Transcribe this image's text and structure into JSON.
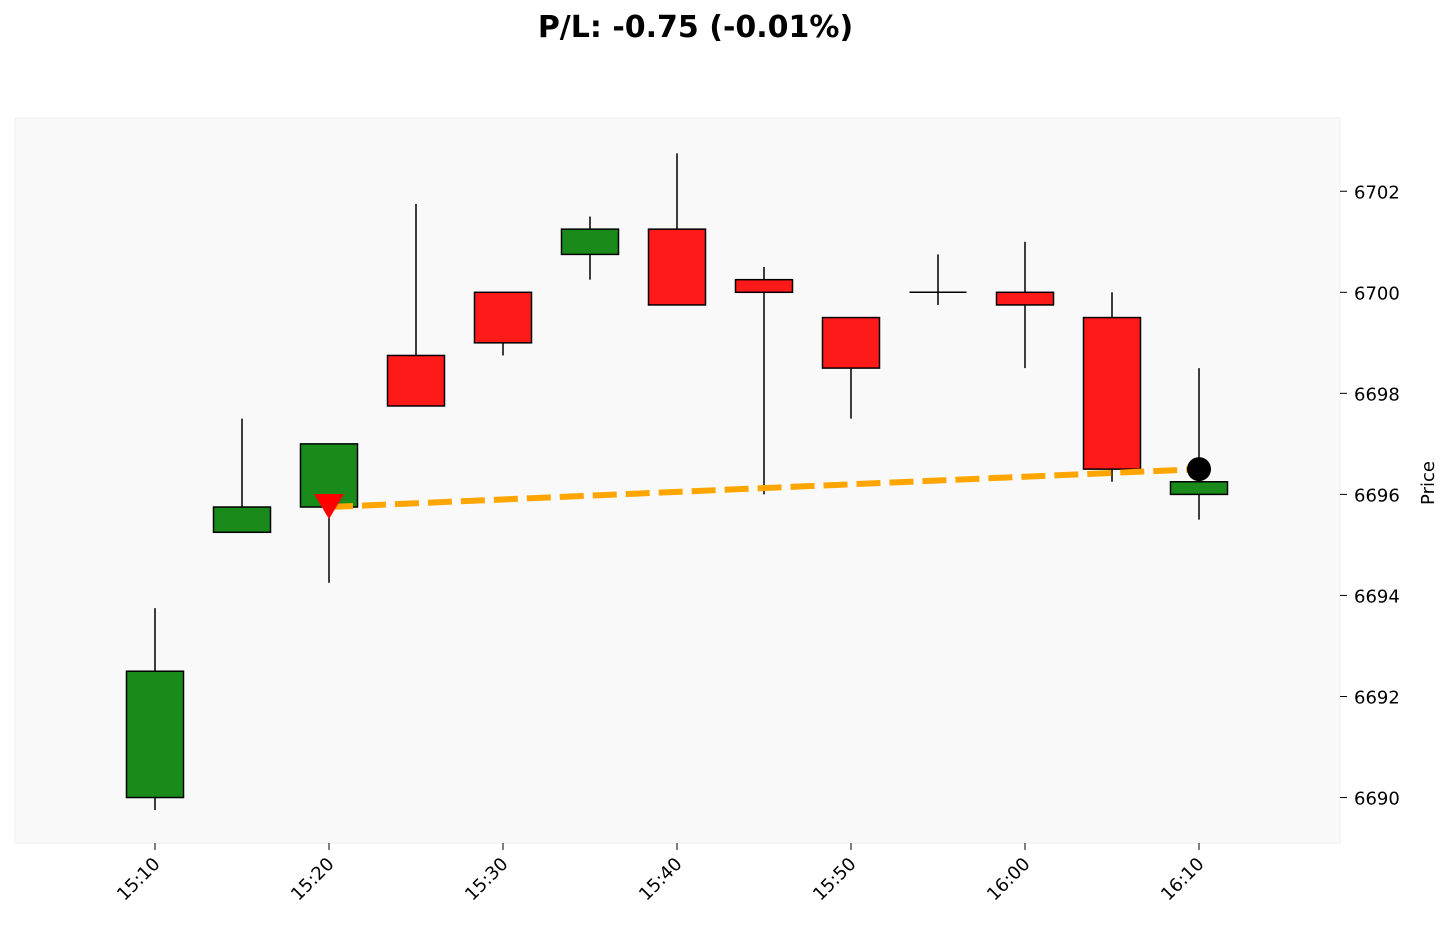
{
  "chart_data": {
    "type": "candlestick",
    "title": "P/L: -0.75 (-0.01%)",
    "ylabel": "Price",
    "xlabel": "",
    "ylim": [
      6689.1,
      6703.45
    ],
    "y_ticks": [
      6690,
      6692,
      6694,
      6696,
      6698,
      6700,
      6702
    ],
    "x_ticks": [
      "15:10",
      "15:20",
      "15:30",
      "15:40",
      "15:50",
      "16:00",
      "16:10"
    ],
    "grid": false,
    "candles": [
      {
        "time": "15:10",
        "open": 6690.0,
        "high": 6693.75,
        "low": 6689.75,
        "close": 6692.5
      },
      {
        "time": "15:15",
        "open": 6695.25,
        "high": 6697.5,
        "low": 6695.25,
        "close": 6695.75
      },
      {
        "time": "15:20",
        "open": 6695.75,
        "high": 6697.0,
        "low": 6694.25,
        "close": 6697.0
      },
      {
        "time": "15:25",
        "open": 6698.75,
        "high": 6701.75,
        "low": 6697.75,
        "close": 6697.75
      },
      {
        "time": "15:30",
        "open": 6700.0,
        "high": 6700.0,
        "low": 6698.75,
        "close": 6699.0
      },
      {
        "time": "15:35",
        "open": 6700.75,
        "high": 6701.5,
        "low": 6700.25,
        "close": 6701.25
      },
      {
        "time": "15:40",
        "open": 6701.25,
        "high": 6702.75,
        "low": 6699.75,
        "close": 6699.75
      },
      {
        "time": "15:45",
        "open": 6700.25,
        "high": 6700.5,
        "low": 6696.0,
        "close": 6700.0
      },
      {
        "time": "15:50",
        "open": 6699.5,
        "high": 6699.5,
        "low": 6697.5,
        "close": 6698.5
      },
      {
        "time": "15:55",
        "open": 6700.0,
        "high": 6700.75,
        "low": 6699.75,
        "close": 6700.0
      },
      {
        "time": "16:00",
        "open": 6700.0,
        "high": 6701.0,
        "low": 6698.5,
        "close": 6699.75
      },
      {
        "time": "16:05",
        "open": 6699.5,
        "high": 6700.0,
        "low": 6696.25,
        "close": 6696.5
      },
      {
        "time": "16:10",
        "open": 6696.0,
        "high": 6698.5,
        "low": 6695.5,
        "close": 6696.25
      }
    ],
    "trade": {
      "entry": {
        "time": "15:20",
        "price": 6695.75,
        "marker": "down-triangle",
        "color": "#ff0000"
      },
      "exit": {
        "time": "16:10",
        "price": 6696.5,
        "marker": "circle",
        "color": "#000000"
      },
      "line_color": "#ffa500",
      "line_style": "dashed"
    },
    "colors": {
      "up": "#1a8a1a",
      "down": "#ff1a1a",
      "background": "#f9f9f9"
    }
  }
}
